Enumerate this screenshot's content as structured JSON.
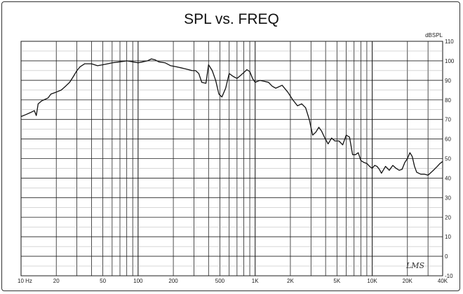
{
  "chart_data": {
    "type": "line",
    "title": "SPL vs. FREQ",
    "ylabel": "dBSPL",
    "xlabel": "",
    "xscale": "log",
    "xlim": [
      10,
      40000
    ],
    "ylim": [
      -10,
      110
    ],
    "grid": true,
    "x_ticks": [
      {
        "value": 10,
        "label": "10  Hz"
      },
      {
        "value": 20,
        "label": "20"
      },
      {
        "value": 50,
        "label": "50"
      },
      {
        "value": 100,
        "label": "100"
      },
      {
        "value": 200,
        "label": "200"
      },
      {
        "value": 500,
        "label": "500"
      },
      {
        "value": 1000,
        "label": "1K"
      },
      {
        "value": 2000,
        "label": "2K"
      },
      {
        "value": 5000,
        "label": "5K"
      },
      {
        "value": 10000,
        "label": "10K"
      },
      {
        "value": 20000,
        "label": "20K"
      },
      {
        "value": 40000,
        "label": "40K"
      }
    ],
    "y_ticks": [
      110,
      100,
      90,
      80,
      70,
      60,
      50,
      40,
      30,
      20,
      10,
      0,
      -10
    ],
    "series": [
      {
        "color": "#111111",
        "points": [
          [
            10,
            71.5
          ],
          [
            11,
            72.5
          ],
          [
            12,
            73.5
          ],
          [
            13,
            74.5
          ],
          [
            13.5,
            72
          ],
          [
            14,
            78
          ],
          [
            15,
            79.5
          ],
          [
            17,
            81
          ],
          [
            18,
            83
          ],
          [
            20,
            84
          ],
          [
            22,
            85
          ],
          [
            24,
            87
          ],
          [
            26,
            89
          ],
          [
            28,
            92
          ],
          [
            30,
            95
          ],
          [
            32,
            97
          ],
          [
            35,
            98.5
          ],
          [
            40,
            98.5
          ],
          [
            45,
            97.5
          ],
          [
            50,
            98
          ],
          [
            55,
            98.5
          ],
          [
            60,
            99
          ],
          [
            70,
            99.5
          ],
          [
            80,
            100
          ],
          [
            90,
            99.5
          ],
          [
            100,
            99
          ],
          [
            110,
            99.5
          ],
          [
            120,
            100
          ],
          [
            130,
            101
          ],
          [
            140,
            100.5
          ],
          [
            150,
            99.5
          ],
          [
            170,
            99
          ],
          [
            190,
            97.5
          ],
          [
            210,
            97
          ],
          [
            230,
            96.5
          ],
          [
            250,
            96
          ],
          [
            270,
            95.5
          ],
          [
            290,
            95
          ],
          [
            310,
            95
          ],
          [
            330,
            93.5
          ],
          [
            350,
            89
          ],
          [
            380,
            88.5
          ],
          [
            400,
            98
          ],
          [
            430,
            95
          ],
          [
            460,
            90
          ],
          [
            490,
            83
          ],
          [
            520,
            81.5
          ],
          [
            560,
            86
          ],
          [
            600,
            93.5
          ],
          [
            650,
            92
          ],
          [
            700,
            91
          ],
          [
            750,
            92.5
          ],
          [
            800,
            94
          ],
          [
            850,
            95.5
          ],
          [
            900,
            94.5
          ],
          [
            950,
            91
          ],
          [
            1000,
            89
          ],
          [
            1100,
            90
          ],
          [
            1200,
            89.5
          ],
          [
            1300,
            89
          ],
          [
            1400,
            87
          ],
          [
            1500,
            86
          ],
          [
            1700,
            87.5
          ],
          [
            1900,
            84
          ],
          [
            2100,
            80
          ],
          [
            2300,
            77
          ],
          [
            2500,
            78
          ],
          [
            2700,
            76
          ],
          [
            2900,
            70
          ],
          [
            3100,
            62
          ],
          [
            3300,
            63.5
          ],
          [
            3500,
            66
          ],
          [
            3700,
            64
          ],
          [
            3900,
            61
          ],
          [
            4200,
            57.5
          ],
          [
            4500,
            60.5
          ],
          [
            4800,
            59
          ],
          [
            5200,
            59
          ],
          [
            5600,
            57
          ],
          [
            6000,
            62
          ],
          [
            6400,
            61
          ],
          [
            6800,
            52
          ],
          [
            7200,
            52
          ],
          [
            7600,
            53
          ],
          [
            8000,
            49
          ],
          [
            8500,
            48
          ],
          [
            9000,
            47.5
          ],
          [
            9500,
            46
          ],
          [
            10000,
            45
          ],
          [
            10500,
            46.5
          ],
          [
            11000,
            46
          ],
          [
            11500,
            44.5
          ],
          [
            12000,
            42.5
          ],
          [
            13000,
            46
          ],
          [
            14000,
            44
          ],
          [
            15000,
            46.5
          ],
          [
            16000,
            45
          ],
          [
            17000,
            44
          ],
          [
            18000,
            44.5
          ],
          [
            19000,
            48
          ],
          [
            20000,
            50
          ],
          [
            21000,
            53
          ],
          [
            22000,
            51
          ],
          [
            23000,
            46
          ],
          [
            24000,
            43
          ],
          [
            26000,
            42
          ],
          [
            28000,
            42
          ],
          [
            30000,
            41.5
          ],
          [
            32000,
            43
          ],
          [
            34000,
            44.5
          ],
          [
            36000,
            46
          ],
          [
            38000,
            47.5
          ],
          [
            40000,
            48.5
          ]
        ]
      }
    ],
    "signature": "LMS"
  }
}
